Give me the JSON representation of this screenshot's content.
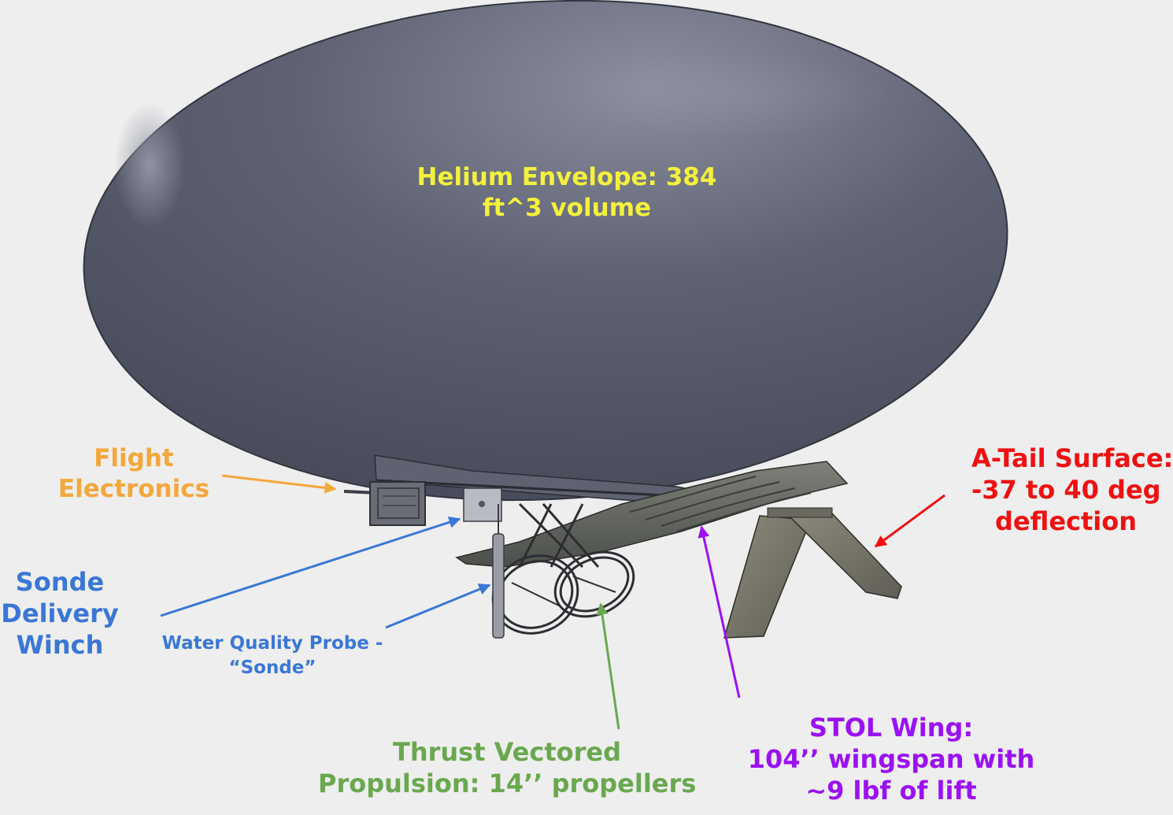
{
  "colors": {
    "background": "#eeeeee",
    "envelope": "#565a6b",
    "helium": "#f4f13c",
    "flight": "#f4a73b",
    "sonde": "#3a77d6",
    "thrust": "#6aa84f",
    "stol": "#9b11f2",
    "atail": "#ee1111"
  },
  "labels": {
    "helium": {
      "line1": "Helium Envelope: 384",
      "line2": "ft^3 volume"
    },
    "flight": {
      "line1": "Flight",
      "line2": "Electronics"
    },
    "winch": {
      "line1": "Sonde",
      "line2": "Delivery",
      "line3": "Winch"
    },
    "probe": {
      "line1": "Water Quality Probe -",
      "line2": "“Sonde”"
    },
    "thrust": {
      "line1": "Thrust Vectored",
      "line2": "Propulsion: 14’’ propellers"
    },
    "stol": {
      "line1": "STOL Wing:",
      "line2": "104’’ wingspan with",
      "line3": "~9 lbf of lift"
    },
    "atail": {
      "line1": "A-Tail Surface:",
      "line2": "-37 to 40 deg",
      "line3": "deflection"
    }
  }
}
